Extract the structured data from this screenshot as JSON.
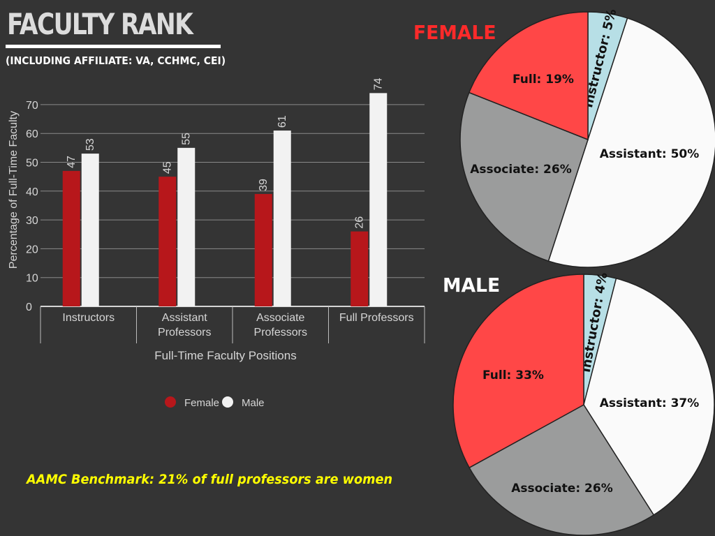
{
  "header": {
    "title": "FACULTY RANK",
    "subtitle": "(INCLUDING AFFILIATE: VA, CCHMC, CEI)"
  },
  "benchmark_note": "AAMC Benchmark: 21% of full professors are women",
  "colors": {
    "background": "#343434",
    "female_bar": "#b7171b",
    "male_bar": "#f2f2f2",
    "pie_full": "#ff4747",
    "pie_assistant": "#fafafa",
    "pie_associate": "#9b9c9c",
    "pie_instructor": "#b7dfe6",
    "benchmark_text": "#ffff00"
  },
  "chart_data": [
    {
      "type": "bar",
      "title": "",
      "xlabel": "Full-Time Faculty Positions",
      "ylabel": "Percentage of Full-Time Faculty",
      "ylim": [
        0,
        70
      ],
      "yticks": [
        0,
        10,
        20,
        30,
        40,
        50,
        60,
        70
      ],
      "grid": true,
      "legend": "bottom",
      "categories": [
        [
          "Instructors"
        ],
        [
          "Assistant",
          "Professors"
        ],
        [
          "Associate",
          "Professors"
        ],
        [
          "Full Professors"
        ]
      ],
      "series": [
        {
          "name": "Female",
          "color": "#b7171b",
          "values": [
            47,
            45,
            39,
            26
          ]
        },
        {
          "name": "Male",
          "color": "#f2f2f2",
          "values": [
            53,
            55,
            61,
            74
          ]
        }
      ]
    },
    {
      "type": "pie",
      "title": "FEMALE",
      "slices": [
        {
          "label": "Instructor: 5%",
          "value": 5,
          "color": "#b7dfe6"
        },
        {
          "label": "Assistant: 50%",
          "value": 50,
          "color": "#fafafa"
        },
        {
          "label": "Associate: 26%",
          "value": 26,
          "color": "#9b9c9c"
        },
        {
          "label": "Full: 19%",
          "value": 19,
          "color": "#ff4747"
        }
      ]
    },
    {
      "type": "pie",
      "title": "MALE",
      "slices": [
        {
          "label": "Instructor: 4%",
          "value": 4,
          "color": "#b7dfe6"
        },
        {
          "label": "Assistant: 37%",
          "value": 37,
          "color": "#fafafa"
        },
        {
          "label": "Associate: 26%",
          "value": 26,
          "color": "#9b9c9c"
        },
        {
          "label": "Full: 33%",
          "value": 33,
          "color": "#ff4747"
        }
      ]
    }
  ]
}
